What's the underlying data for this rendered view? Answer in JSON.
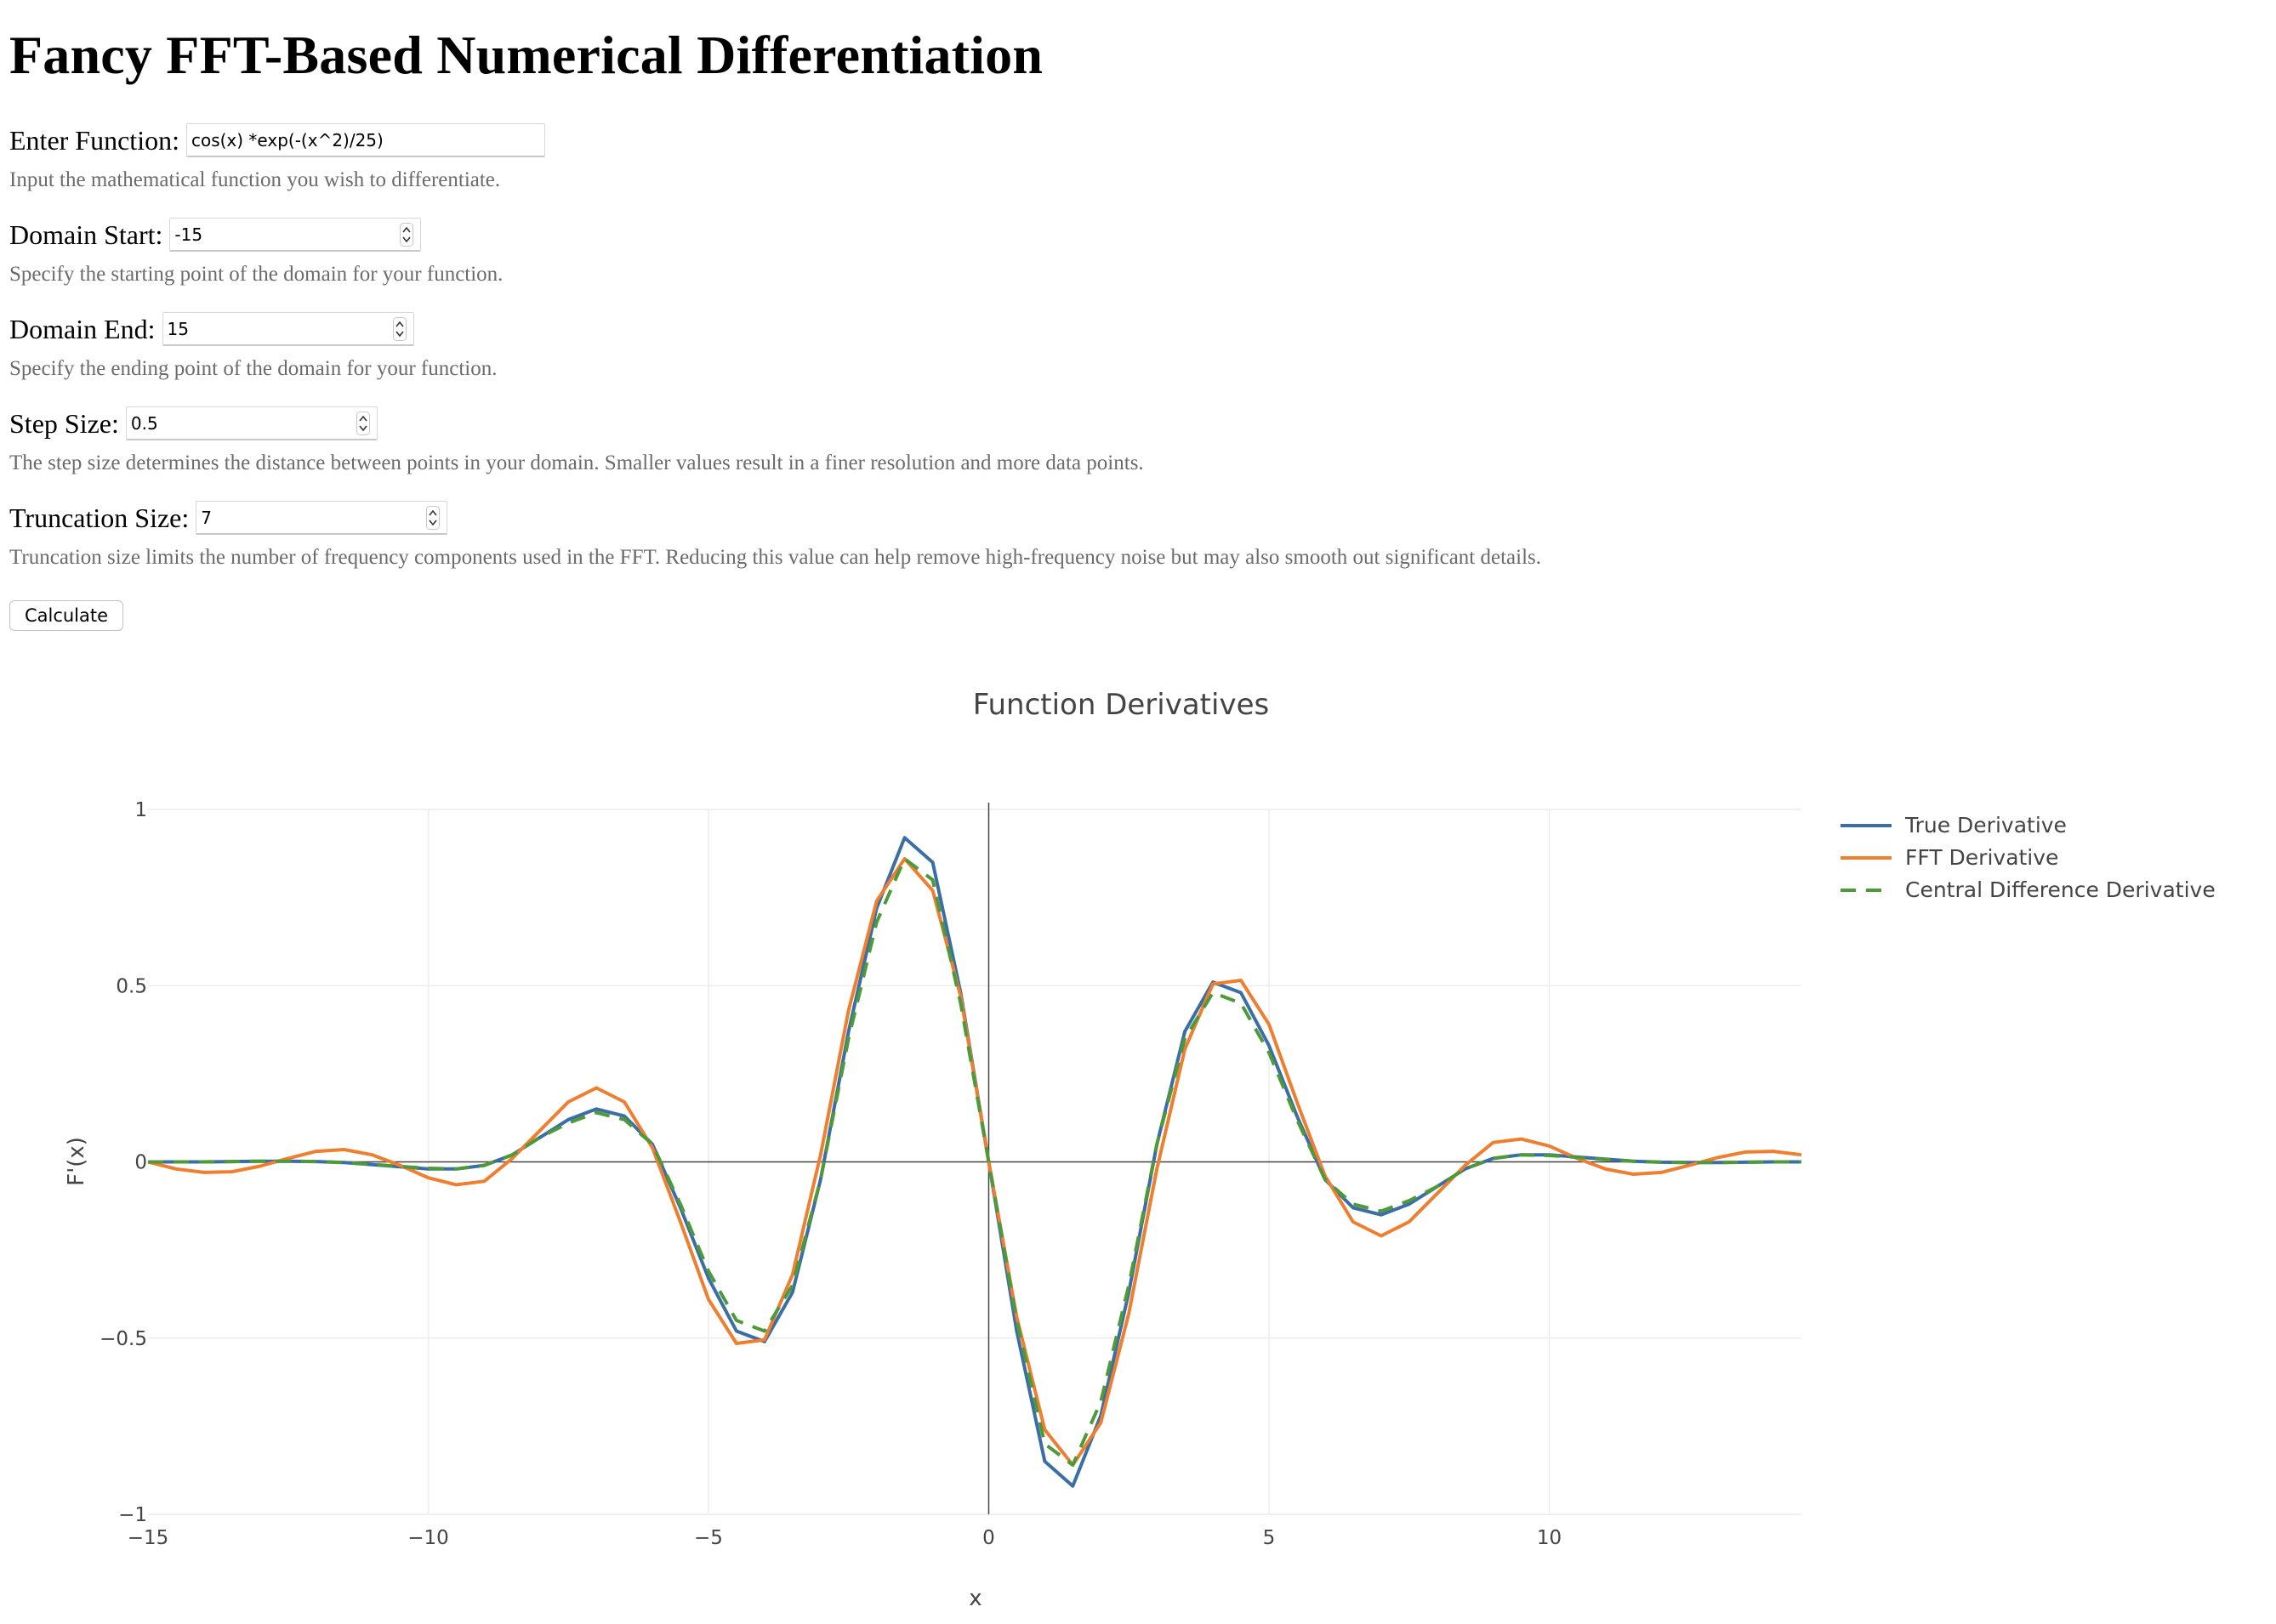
{
  "page": {
    "heading": "Fancy FFT-Based Numerical Differentiation"
  },
  "form": {
    "function_label": "Enter Function:",
    "function_value": "cos(x) *exp(-(x^2)/25)",
    "function_hint": "Input the mathematical function you wish to differentiate.",
    "domain_start_label": "Domain Start:",
    "domain_start_value": "-15",
    "domain_start_hint": "Specify the starting point of the domain for your function.",
    "domain_end_label": "Domain End:",
    "domain_end_value": "15",
    "domain_end_hint": "Specify the ending point of the domain for your function.",
    "step_label": "Step Size:",
    "step_value": "0.5",
    "step_hint": "The step size determines the distance between points in your domain. Smaller values result in a finer resolution and more data points.",
    "trunc_label": "Truncation Size:",
    "trunc_value": "7",
    "trunc_hint": "Truncation size limits the number of frequency components used in the FFT. Reducing this value can help remove high-frequency noise but may also smooth out significant details.",
    "calculate_label": "Calculate"
  },
  "chart_data": {
    "type": "line",
    "title": "Function Derivatives",
    "xlabel": "x",
    "ylabel": "F'(x)",
    "xlim": [
      -15,
      14.5
    ],
    "ylim": [
      -1,
      1
    ],
    "x_ticks": [
      {
        "value": -15,
        "label": "−15"
      },
      {
        "value": -10,
        "label": "−10"
      },
      {
        "value": -5,
        "label": "−5"
      },
      {
        "value": 0,
        "label": "0"
      },
      {
        "value": 5,
        "label": "5"
      },
      {
        "value": 10,
        "label": "10"
      }
    ],
    "y_ticks": [
      {
        "value": -1,
        "label": "−1"
      },
      {
        "value": -0.5,
        "label": "−0.5"
      },
      {
        "value": 0,
        "label": "0"
      },
      {
        "value": 0.5,
        "label": "0.5"
      },
      {
        "value": 1,
        "label": "1"
      }
    ],
    "grid": true,
    "legend_position": "top-right",
    "x": [
      -15,
      -14.5,
      -14,
      -13.5,
      -13,
      -12.5,
      -12,
      -11.5,
      -11,
      -10.5,
      -10,
      -9.5,
      -9,
      -8.5,
      -8,
      -7.5,
      -7,
      -6.5,
      -6,
      -5.5,
      -5,
      -4.5,
      -4,
      -3.5,
      -3,
      -2.5,
      -2,
      -1.5,
      -1,
      -0.5,
      0,
      0.5,
      1,
      1.5,
      2,
      2.5,
      3,
      3.5,
      4,
      4.5,
      5,
      5.5,
      6,
      6.5,
      7,
      7.5,
      8,
      8.5,
      9,
      9.5,
      10,
      10.5,
      11,
      11.5,
      12,
      12.5,
      13,
      13.5,
      14,
      14.5
    ],
    "series": [
      {
        "name": "True Derivative",
        "color": "#3a6ea5",
        "dash": "solid",
        "values": [
          0.0,
          0.0,
          0.0,
          0.001,
          0.002,
          0.002,
          0.001,
          -0.002,
          -0.008,
          -0.014,
          -0.02,
          -0.02,
          -0.01,
          0.02,
          0.07,
          0.12,
          0.15,
          0.13,
          0.05,
          -0.13,
          -0.33,
          -0.48,
          -0.51,
          -0.37,
          -0.05,
          0.37,
          0.72,
          0.92,
          0.85,
          0.48,
          0.0,
          -0.48,
          -0.85,
          -0.92,
          -0.72,
          -0.37,
          0.05,
          0.37,
          0.51,
          0.48,
          0.33,
          0.13,
          -0.05,
          -0.13,
          -0.15,
          -0.12,
          -0.07,
          -0.02,
          0.01,
          0.02,
          0.02,
          0.014,
          0.008,
          0.002,
          -0.001,
          -0.002,
          -0.002,
          -0.001,
          0.0,
          0.0
        ]
      },
      {
        "name": "FFT Derivative",
        "color": "#ee7e30",
        "dash": "solid",
        "values": [
          0.0,
          -0.02,
          -0.03,
          -0.028,
          -0.012,
          0.01,
          0.03,
          0.035,
          0.02,
          -0.01,
          -0.045,
          -0.065,
          -0.055,
          0.01,
          0.09,
          0.17,
          0.21,
          0.17,
          0.04,
          -0.17,
          -0.39,
          -0.515,
          -0.505,
          -0.32,
          0.02,
          0.43,
          0.74,
          0.86,
          0.77,
          0.47,
          0.0,
          -0.44,
          -0.76,
          -0.86,
          -0.74,
          -0.43,
          -0.02,
          0.32,
          0.505,
          0.515,
          0.39,
          0.17,
          -0.04,
          -0.17,
          -0.21,
          -0.17,
          -0.09,
          -0.01,
          0.055,
          0.065,
          0.045,
          0.01,
          -0.02,
          -0.035,
          -0.03,
          -0.01,
          0.012,
          0.028,
          0.03,
          0.02
        ]
      },
      {
        "name": "Central Difference Derivative",
        "color": "#4e9a3a",
        "dash": "dash",
        "values": [
          0.0,
          0.0,
          0.0,
          0.001,
          0.002,
          0.002,
          0.001,
          -0.002,
          -0.007,
          -0.013,
          -0.018,
          -0.02,
          -0.01,
          0.02,
          0.07,
          0.11,
          0.14,
          0.12,
          0.05,
          -0.12,
          -0.31,
          -0.45,
          -0.48,
          -0.35,
          -0.05,
          0.35,
          0.68,
          0.86,
          0.8,
          0.45,
          0.0,
          -0.45,
          -0.8,
          -0.86,
          -0.68,
          -0.35,
          0.05,
          0.35,
          0.48,
          0.45,
          0.31,
          0.12,
          -0.05,
          -0.12,
          -0.14,
          -0.11,
          -0.07,
          -0.02,
          0.01,
          0.02,
          0.018,
          0.013,
          0.007,
          0.002,
          -0.001,
          -0.002,
          -0.002,
          -0.001,
          0.0,
          0.0
        ]
      }
    ]
  }
}
